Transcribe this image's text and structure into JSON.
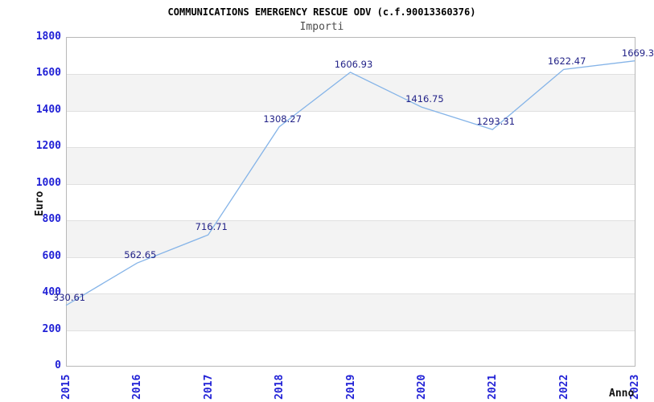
{
  "header": {
    "title": "COMMUNICATIONS EMERGENCY RESCUE ODV (c.f.90013360376)",
    "subtitle": "Importi"
  },
  "chart_data": {
    "type": "line",
    "title": "COMMUNICATIONS EMERGENCY RESCUE ODV (c.f.90013360376)",
    "subtitle": "Importi",
    "xlabel": "Anno",
    "ylabel": "Euro",
    "x": [
      "2015",
      "2016",
      "2017",
      "2018",
      "2019",
      "2020",
      "2021",
      "2022",
      "2023"
    ],
    "series": [
      {
        "name": "Importi",
        "values": [
          330.61,
          562.65,
          716.71,
          1308.27,
          1606.93,
          1416.75,
          1293.31,
          1622.47,
          1669.3
        ]
      }
    ],
    "point_labels": [
      "330.61",
      "562.65",
      "716.71",
      "1308.27",
      "1606.93",
      "1416.75",
      "1293.31",
      "1622.47",
      "1669.3"
    ],
    "ylim": [
      0,
      1800
    ],
    "ytick_step": 200,
    "yticks": [
      "0",
      "200",
      "400",
      "600",
      "800",
      "1000",
      "1200",
      "1400",
      "1600",
      "1800"
    ],
    "grid": "horizontal-gridlines-with-alternating-bands",
    "legend": "none"
  },
  "colors": {
    "line": "#85b4e8",
    "tick_label": "#2121d6",
    "point_label": "#232388",
    "band_gray": "#f3f3f3",
    "gridline": "#e0e0e0",
    "plot_border": "#b8b8b8",
    "title": "#000000",
    "subtitle": "#4d4d4d",
    "axis_title": "#111111",
    "background": "#ffffff"
  }
}
